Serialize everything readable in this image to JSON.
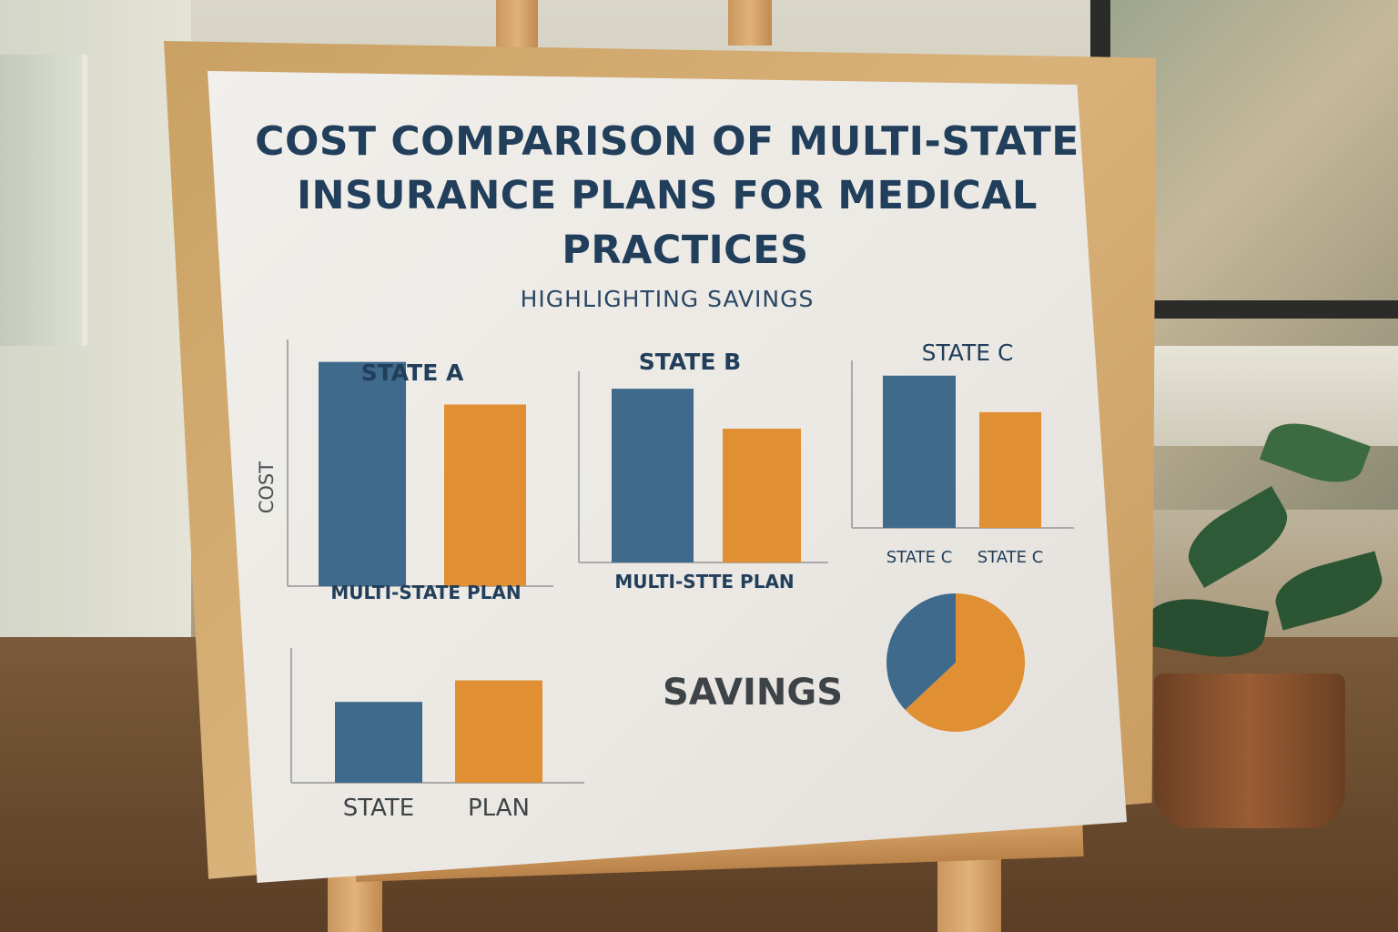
{
  "poster": {
    "title_lines": [
      "COST COMPARISON OF MULTI-STATE",
      "INSURANCE PLANS FOR MEDICAL",
      "PRACTICES"
    ],
    "subtitle": "HIGHLIGHTING SAVINGS",
    "savings_label": "SAVINGS"
  },
  "colors": {
    "blue": "#3f6a8c",
    "orange": "#e08f33",
    "title": "#213e5b",
    "axis": "#a9a9a9"
  },
  "chart_data": [
    {
      "type": "bar",
      "title": "STATE A",
      "ylabel": "COST",
      "xlabel": "MULTI-STATE PLAN",
      "values": [
        100,
        81
      ],
      "ylim": [
        0,
        110
      ]
    },
    {
      "type": "bar",
      "title": "STATE B",
      "xlabel": "MULTI-STTE PLAN",
      "values": [
        100,
        77
      ],
      "ylim": [
        0,
        110
      ]
    },
    {
      "type": "bar",
      "title": "STATE C",
      "categories": [
        "STATE C",
        "STATE C"
      ],
      "values": [
        100,
        76
      ],
      "ylim": [
        0,
        110
      ]
    },
    {
      "type": "bar",
      "categories": [
        "STATE",
        "PLAN"
      ],
      "values": [
        60,
        76
      ],
      "ylim": [
        0,
        100
      ]
    },
    {
      "type": "pie",
      "values": [
        37,
        63
      ]
    }
  ]
}
